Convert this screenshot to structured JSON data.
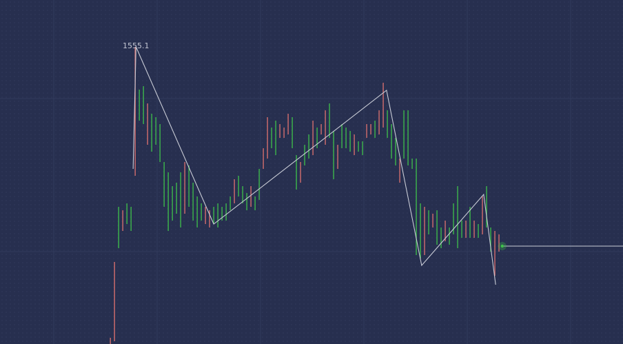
{
  "chart_data": {
    "type": "hilo",
    "ylim": [
      1512,
      1561.9
    ],
    "xlim": [
      -26.7,
      124
    ],
    "up_color": "#3ec24a",
    "down_color": "#e0726f",
    "line_color": "#c9ccd6",
    "highs": [
      1512.9,
      1523.9,
      1531.9,
      1531.4,
      1532.4,
      1531.9,
      1555.1,
      1548.9,
      1549.4,
      1546.9,
      1545.4,
      1544.9,
      1543.9,
      1538.4,
      1536.9,
      1534.9,
      1535.4,
      1536.9,
      1538.4,
      1537.9,
      1535.4,
      1533.4,
      1532.4,
      1531.9,
      1531.4,
      1531.9,
      1532.4,
      1531.9,
      1532.4,
      1533.4,
      1535.9,
      1536.4,
      1534.9,
      1533.9,
      1534.9,
      1533.4,
      1537.4,
      1540.4,
      1544.9,
      1543.4,
      1544.4,
      1543.9,
      1543.4,
      1545.4,
      1544.9,
      1539.4,
      1538.4,
      1540.9,
      1542.4,
      1544.4,
      1543.4,
      1543.9,
      1545.9,
      1546.9,
      1542.9,
      1540.9,
      1543.9,
      1543.4,
      1542.9,
      1542.4,
      1541.4,
      1541.4,
      1543.9,
      1543.9,
      1544.4,
      1545.9,
      1549.9,
      1545.9,
      1543.9,
      1541.9,
      1538.9,
      1545.9,
      1545.9,
      1538.9,
      1538.9,
      1532.4,
      1531.9,
      1531.4,
      1530.9,
      1531.4,
      1528.9,
      1529.9,
      1528.9,
      1532.4,
      1534.9,
      1529.9,
      1529.9,
      1531.9,
      1529.9,
      1529.4,
      1533.4,
      1534.9,
      1528.9,
      1528.4,
      1527.9
    ],
    "lows": [
      1512.0,
      1512.4,
      1525.9,
      1528.4,
      1529.4,
      1528.4,
      1536.4,
      1544.4,
      1543.9,
      1540.9,
      1539.9,
      1540.9,
      1538.4,
      1531.9,
      1528.4,
      1529.9,
      1530.9,
      1528.9,
      1530.9,
      1531.9,
      1529.9,
      1528.9,
      1529.9,
      1529.4,
      1528.9,
      1529.4,
      1528.9,
      1529.9,
      1529.9,
      1531.4,
      1532.4,
      1533.4,
      1532.4,
      1531.4,
      1531.9,
      1531.4,
      1532.9,
      1537.4,
      1538.9,
      1540.4,
      1539.4,
      1541.9,
      1541.9,
      1542.4,
      1540.4,
      1534.4,
      1535.4,
      1537.9,
      1538.9,
      1539.4,
      1540.4,
      1542.4,
      1540.9,
      1541.9,
      1535.9,
      1537.4,
      1540.4,
      1540.4,
      1539.9,
      1539.4,
      1539.9,
      1539.4,
      1541.9,
      1542.4,
      1541.9,
      1542.4,
      1543.4,
      1541.9,
      1538.9,
      1537.9,
      1535.4,
      1538.9,
      1537.9,
      1537.4,
      1524.9,
      1524.4,
      1524.9,
      1527.9,
      1528.9,
      1526.4,
      1525.9,
      1526.9,
      1526.4,
      1527.9,
      1525.9,
      1527.4,
      1527.4,
      1527.4,
      1527.4,
      1527.4,
      1527.9,
      1528.9,
      1525.4,
      1521.9,
      1525.4
    ],
    "up": [
      false,
      false,
      true,
      false,
      true,
      true,
      false,
      true,
      true,
      false,
      true,
      true,
      true,
      true,
      true,
      true,
      true,
      true,
      false,
      true,
      true,
      true,
      true,
      false,
      false,
      true,
      true,
      true,
      true,
      true,
      false,
      true,
      true,
      true,
      false,
      true,
      true,
      false,
      false,
      true,
      true,
      false,
      false,
      false,
      true,
      true,
      false,
      true,
      true,
      false,
      true,
      false,
      false,
      true,
      true,
      false,
      true,
      true,
      true,
      false,
      true,
      true,
      false,
      false,
      true,
      false,
      false,
      true,
      true,
      true,
      false,
      true,
      true,
      true,
      true,
      true,
      false,
      true,
      false,
      true,
      true,
      false,
      true,
      true,
      true,
      true,
      false,
      true,
      false,
      true,
      false,
      true,
      true,
      false,
      false
    ],
    "zigzag": {
      "x": [
        5.5,
        6.2,
        25,
        66.8,
        75.3,
        90.3,
        93.2
      ],
      "values": [
        1537.4,
        1555.1,
        1529.4,
        1548.8,
        1523.4,
        1533.7,
        1520.6
      ]
    },
    "last_price": 1526.2,
    "last_x": 94.8
  }
}
